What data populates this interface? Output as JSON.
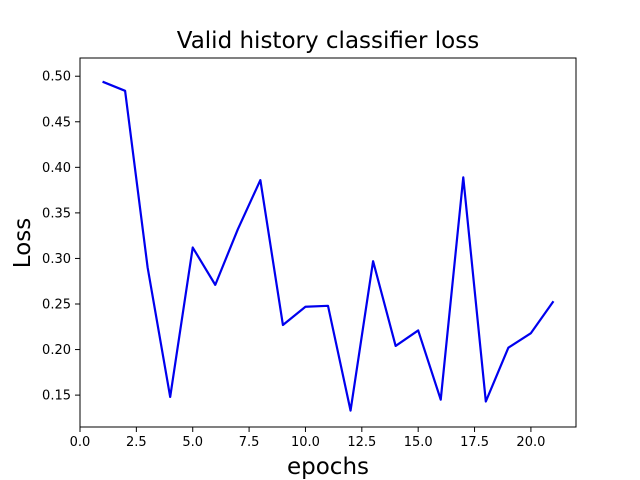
{
  "chart_data": {
    "type": "line",
    "title": "Valid history classifier loss",
    "xlabel": "epochs",
    "ylabel": "Loss",
    "xlim": [
      0,
      22
    ],
    "ylim": [
      0.115,
      0.52
    ],
    "xticks": [
      0,
      2.5,
      5,
      7.5,
      10,
      12.5,
      15,
      17.5,
      20
    ],
    "xtick_labels": [
      "0.0",
      "2.5",
      "5.0",
      "7.5",
      "10.0",
      "12.5",
      "15.0",
      "17.5",
      "20.0"
    ],
    "yticks": [
      0.15,
      0.2,
      0.25,
      0.3,
      0.35,
      0.4,
      0.45,
      0.5
    ],
    "ytick_labels": [
      "0.15",
      "0.20",
      "0.25",
      "0.30",
      "0.35",
      "0.40",
      "0.45",
      "0.50"
    ],
    "grid": false,
    "series": [
      {
        "color": "#0000ee",
        "x": [
          1,
          2,
          3,
          4,
          5,
          6,
          7,
          8,
          9,
          10,
          11,
          12,
          13,
          14,
          15,
          16,
          17,
          18,
          19,
          20,
          21
        ],
        "y": [
          0.494,
          0.484,
          0.29,
          0.148,
          0.312,
          0.271,
          0.332,
          0.386,
          0.227,
          0.247,
          0.248,
          0.133,
          0.297,
          0.204,
          0.221,
          0.145,
          0.389,
          0.143,
          0.202,
          0.218,
          0.253
        ]
      }
    ]
  }
}
